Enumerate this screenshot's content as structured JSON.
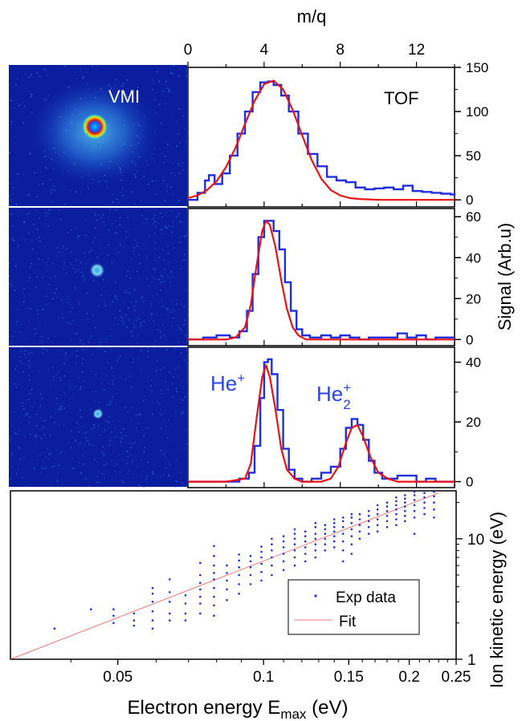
{
  "colors": {
    "experimental": "#1f2fe0",
    "fit": "#ee1111",
    "vmi_background": "#0b1ea0",
    "axis": "#000000"
  },
  "chart_data": [
    {
      "panel": "vmi-images",
      "type": "heatmap",
      "labels": [
        "VMI"
      ]
    },
    {
      "panel": "tof-top",
      "type": "line",
      "label": "TOF",
      "x_top_label": "m/q",
      "x_top_ticks": [
        0,
        4,
        8,
        12
      ],
      "xlim": [
        0,
        14
      ],
      "ylim": [
        -8,
        150
      ],
      "yticks": [
        0,
        50,
        100,
        150
      ],
      "series": [
        {
          "role": "experimental",
          "x": [
            0,
            0.5,
            0.9,
            1.1,
            1.4,
            1.8,
            2.2,
            2.6,
            3.0,
            3.4,
            3.8,
            4.2,
            4.5,
            4.9,
            5.3,
            5.8,
            6.3,
            6.8,
            7.3,
            7.8,
            8.3,
            8.8,
            9.3,
            9.8,
            10.3,
            10.8,
            11.3,
            11.8,
            12.3,
            12.8,
            13.3,
            13.8,
            14.0
          ],
          "y": [
            0,
            8,
            22,
            28,
            18,
            30,
            50,
            75,
            100,
            122,
            133,
            134,
            130,
            118,
            100,
            75,
            52,
            38,
            26,
            22,
            20,
            14,
            12,
            13,
            14,
            12,
            16,
            10,
            9,
            8,
            7,
            6,
            8
          ]
        },
        {
          "role": "fit",
          "x": [
            0,
            0.5,
            1,
            1.5,
            2,
            2.5,
            3,
            3.5,
            4,
            4.5,
            5,
            5.5,
            6,
            6.5,
            7,
            7.5,
            8,
            8.5,
            9,
            10,
            11,
            12,
            13,
            14
          ],
          "y": [
            2,
            5,
            11,
            21,
            37,
            59,
            86,
            112,
            131,
            135,
            125,
            102,
            73,
            45,
            24,
            11,
            5,
            2,
            1,
            0,
            0,
            0,
            0,
            0
          ]
        }
      ]
    },
    {
      "panel": "tof-middle",
      "type": "line",
      "ylabel": "Signal (Arb.u)",
      "xlim": [
        0,
        14
      ],
      "ylim": [
        -3,
        64
      ],
      "yticks": [
        0,
        20,
        40,
        60
      ],
      "series": [
        {
          "role": "experimental",
          "x": [
            0,
            0.8,
            1.5,
            2.2,
            2.7,
            3.1,
            3.4,
            3.7,
            4.0,
            4.2,
            4.5,
            4.8,
            5.1,
            5.4,
            5.7,
            6.0,
            6.4,
            7.0,
            7.5,
            8.0,
            8.5,
            9.0,
            9.5,
            10.0,
            10.5,
            11.0,
            11.5,
            12.0,
            12.5,
            13.0,
            13.5,
            14.0
          ],
          "y": [
            0,
            1,
            2,
            1,
            4,
            14,
            32,
            50,
            58,
            58,
            53,
            44,
            28,
            14,
            5,
            2,
            1,
            2,
            1,
            2,
            1,
            0,
            1,
            1,
            1,
            3,
            1,
            2,
            0,
            1,
            1,
            1
          ]
        },
        {
          "role": "fit",
          "x": [
            0,
            1,
            2,
            2.5,
            3,
            3.3,
            3.6,
            3.9,
            4.1,
            4.3,
            4.6,
            4.9,
            5.2,
            5.5,
            5.8,
            6.2,
            6.6,
            7,
            8,
            10,
            12,
            14
          ],
          "y": [
            0,
            0,
            0,
            1,
            6,
            17,
            36,
            53,
            58,
            56,
            45,
            29,
            15,
            6,
            2,
            0,
            0,
            0,
            0,
            0,
            0,
            0
          ]
        }
      ]
    },
    {
      "panel": "tof-bottom",
      "type": "line",
      "labels": [
        "He+",
        "He2+"
      ],
      "xlim": [
        0,
        14
      ],
      "ylim": [
        -2,
        45
      ],
      "yticks": [
        0,
        20,
        40
      ],
      "series": [
        {
          "role": "experimental",
          "x": [
            0,
            1,
            2,
            2.7,
            3.2,
            3.5,
            3.8,
            4.0,
            4.2,
            4.4,
            4.7,
            5.0,
            5.3,
            5.6,
            6.0,
            6.5,
            7.0,
            7.5,
            8.0,
            8.3,
            8.6,
            8.9,
            9.2,
            9.5,
            9.8,
            10.2,
            10.6,
            11.0,
            11.5,
            12.0,
            12.5,
            13.0,
            13.5,
            14.0
          ],
          "y": [
            0,
            0,
            0,
            1,
            3,
            12,
            28,
            40,
            41,
            36,
            24,
            11,
            4,
            1,
            0,
            1,
            3,
            5,
            11,
            18,
            21,
            19,
            14,
            7,
            3,
            1,
            1,
            2,
            2,
            0,
            1,
            0,
            0,
            0
          ]
        },
        {
          "role": "fit",
          "x": [
            0,
            2,
            3,
            3.3,
            3.6,
            3.9,
            4.1,
            4.3,
            4.6,
            4.9,
            5.2,
            5.6,
            6.0,
            7.0,
            7.5,
            7.9,
            8.3,
            8.6,
            8.9,
            9.2,
            9.6,
            10.0,
            10.5,
            11,
            12,
            14
          ],
          "y": [
            0,
            0,
            1,
            6,
            21,
            35,
            39,
            35,
            24,
            11,
            4,
            1,
            0,
            0,
            1,
            5,
            13,
            18,
            19,
            15,
            8,
            3,
            1,
            0,
            0,
            0
          ]
        }
      ]
    },
    {
      "panel": "energy-correlation",
      "type": "scatter",
      "xlabel": "Electron energy E",
      "xlabel_subscript": "max",
      "xlabel_unit": " (eV)",
      "ylabel": "Ion kinetic energy (eV)",
      "x_scale": "log",
      "y_scale": "log",
      "xlim": [
        0.03,
        0.25
      ],
      "ylim": [
        1,
        25
      ],
      "xticks": [
        0.05,
        0.1,
        0.15,
        0.2,
        0.25
      ],
      "xtick_labels": [
        "0.05",
        "0.1",
        "0.15",
        "0.2",
        "0.25"
      ],
      "yticks": [
        1,
        10
      ],
      "legend": {
        "position": "bottom-right",
        "items": [
          "Exp data",
          "Fit"
        ]
      },
      "fit": {
        "x": [
          0.03,
          0.23
        ],
        "y": [
          1.0,
          24.0
        ]
      },
      "columns": [
        {
          "x": 0.037,
          "y": [
            1.8
          ]
        },
        {
          "x": 0.044,
          "y": [
            2.6
          ]
        },
        {
          "x": 0.049,
          "y": [
            2.0,
            2.3,
            2.6
          ]
        },
        {
          "x": 0.054,
          "y": [
            1.9,
            2.1,
            2.4
          ]
        },
        {
          "x": 0.059,
          "y": [
            1.8,
            2.1,
            2.5,
            3.0,
            3.5,
            3.9
          ]
        },
        {
          "x": 0.064,
          "y": [
            2.1,
            2.4,
            3.0,
            3.6,
            4.6
          ]
        },
        {
          "x": 0.069,
          "y": [
            2.1,
            2.4,
            2.9,
            3.4
          ]
        },
        {
          "x": 0.074,
          "y": [
            2.4,
            2.9,
            3.3,
            3.8,
            4.3,
            5.0,
            6.3
          ]
        },
        {
          "x": 0.079,
          "y": [
            2.3,
            2.8,
            3.3,
            3.9,
            4.6,
            5.2,
            6.0,
            7.2,
            8.7
          ]
        },
        {
          "x": 0.084,
          "y": [
            3.1,
            3.8,
            4.5,
            5.2,
            6.0
          ]
        },
        {
          "x": 0.089,
          "y": [
            3.5,
            4.2,
            5.0,
            5.8,
            6.6,
            7.4
          ]
        },
        {
          "x": 0.094,
          "y": [
            4.2,
            5.0,
            5.8,
            6.5,
            7.2
          ]
        },
        {
          "x": 0.099,
          "y": [
            4.5,
            5.3,
            6.2,
            7.0,
            7.8,
            8.6
          ]
        },
        {
          "x": 0.104,
          "y": [
            5.0,
            6.0,
            7.0,
            8.0,
            9.0,
            10.0
          ]
        },
        {
          "x": 0.11,
          "y": [
            5.5,
            6.5,
            7.5,
            8.5,
            9.5,
            10.5
          ]
        },
        {
          "x": 0.116,
          "y": [
            6.0,
            7.0,
            8.0,
            9.0,
            10.0,
            11.0,
            12.0
          ]
        },
        {
          "x": 0.122,
          "y": [
            6.5,
            7.5,
            8.5,
            9.5,
            10.5,
            11.5
          ]
        },
        {
          "x": 0.128,
          "y": [
            7.0,
            8.0,
            9.0,
            10.0,
            11.0,
            12.5,
            13.5
          ]
        },
        {
          "x": 0.134,
          "y": [
            8.0,
            9.0,
            10.0,
            11.0,
            12.0,
            13.0
          ]
        },
        {
          "x": 0.14,
          "y": [
            8.5,
            9.5,
            10.5,
            11.5,
            12.5,
            13.5,
            14.5
          ]
        },
        {
          "x": 0.146,
          "y": [
            6.5,
            8.0,
            9.5,
            11.0,
            12.5,
            14.0,
            15.0
          ]
        },
        {
          "x": 0.152,
          "y": [
            7.5,
            9.0,
            10.5,
            12.0,
            13.5,
            15.0,
            16.0
          ]
        },
        {
          "x": 0.158,
          "y": [
            10.0,
            11.5,
            13.0,
            14.5,
            16.0
          ]
        },
        {
          "x": 0.165,
          "y": [
            11.0,
            12.5,
            14.0,
            15.5,
            17.0
          ]
        },
        {
          "x": 0.172,
          "y": [
            11.5,
            13.0,
            14.5,
            16.0,
            17.5,
            19.0
          ]
        },
        {
          "x": 0.18,
          "y": [
            12.5,
            14.0,
            15.5,
            17.0,
            18.5,
            20.0
          ]
        },
        {
          "x": 0.188,
          "y": [
            13.0,
            14.5,
            16.0,
            17.5,
            19.0,
            20.5,
            22.0
          ]
        },
        {
          "x": 0.196,
          "y": [
            14.0,
            15.5,
            17.0,
            18.5,
            20.0,
            21.5,
            23.0
          ]
        },
        {
          "x": 0.205,
          "y": [
            11.0,
            15.0,
            17.0,
            19.0,
            21.0,
            23.0,
            24.5
          ]
        },
        {
          "x": 0.215,
          "y": [
            16.0,
            18.0,
            20.0,
            22.0,
            24.0
          ]
        },
        {
          "x": 0.225,
          "y": [
            15.0,
            17.5,
            20.0,
            22.5,
            24.5
          ]
        }
      ]
    }
  ]
}
